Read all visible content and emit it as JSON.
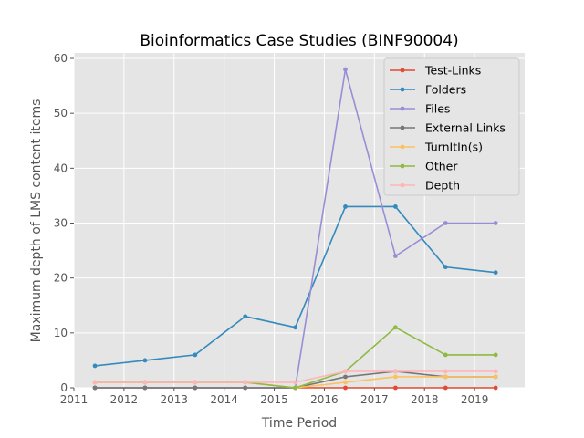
{
  "chart_data": {
    "type": "line",
    "title": "Bioinformatics Case Studies (BINF90004)",
    "xlabel": "Time Period",
    "ylabel": "Maximum depth of LMS content items",
    "xlim": [
      2011,
      2020
    ],
    "ylim": [
      0,
      61
    ],
    "xticks": [
      2011,
      2012,
      2013,
      2014,
      2015,
      2016,
      2017,
      2018,
      2019
    ],
    "yticks": [
      0,
      10,
      20,
      30,
      40,
      50,
      60
    ],
    "grid": true,
    "legend_position": "top-right",
    "x": [
      2011.42,
      2012.42,
      2013.42,
      2014.42,
      2015.42,
      2016.42,
      2017.42,
      2018.42,
      2019.42
    ],
    "series": [
      {
        "name": "Test-Links",
        "color": "#E24A33",
        "values": [
          0,
          0,
          0,
          0,
          0,
          0,
          0,
          0,
          0
        ]
      },
      {
        "name": "Folders",
        "color": "#348ABD",
        "values": [
          4,
          5,
          6,
          13,
          11,
          33,
          33,
          22,
          21
        ]
      },
      {
        "name": "Files",
        "color": "#988ED5",
        "values": [
          0,
          0,
          0,
          0,
          0,
          58,
          24,
          30,
          30
        ]
      },
      {
        "name": "External Links",
        "color": "#777777",
        "values": [
          0,
          0,
          0,
          0,
          0,
          2,
          3,
          2,
          2
        ]
      },
      {
        "name": "TurnItIn(s)",
        "color": "#FBC15E",
        "values": [
          1,
          1,
          1,
          1,
          0,
          1,
          2,
          2,
          2
        ]
      },
      {
        "name": "Other",
        "color": "#8EBA42",
        "values": [
          1,
          1,
          1,
          1,
          0,
          3,
          11,
          6,
          6
        ]
      },
      {
        "name": "Depth",
        "color": "#FFB5B8",
        "values": [
          1,
          1,
          1,
          1,
          1,
          3,
          3,
          3,
          3
        ]
      }
    ]
  }
}
